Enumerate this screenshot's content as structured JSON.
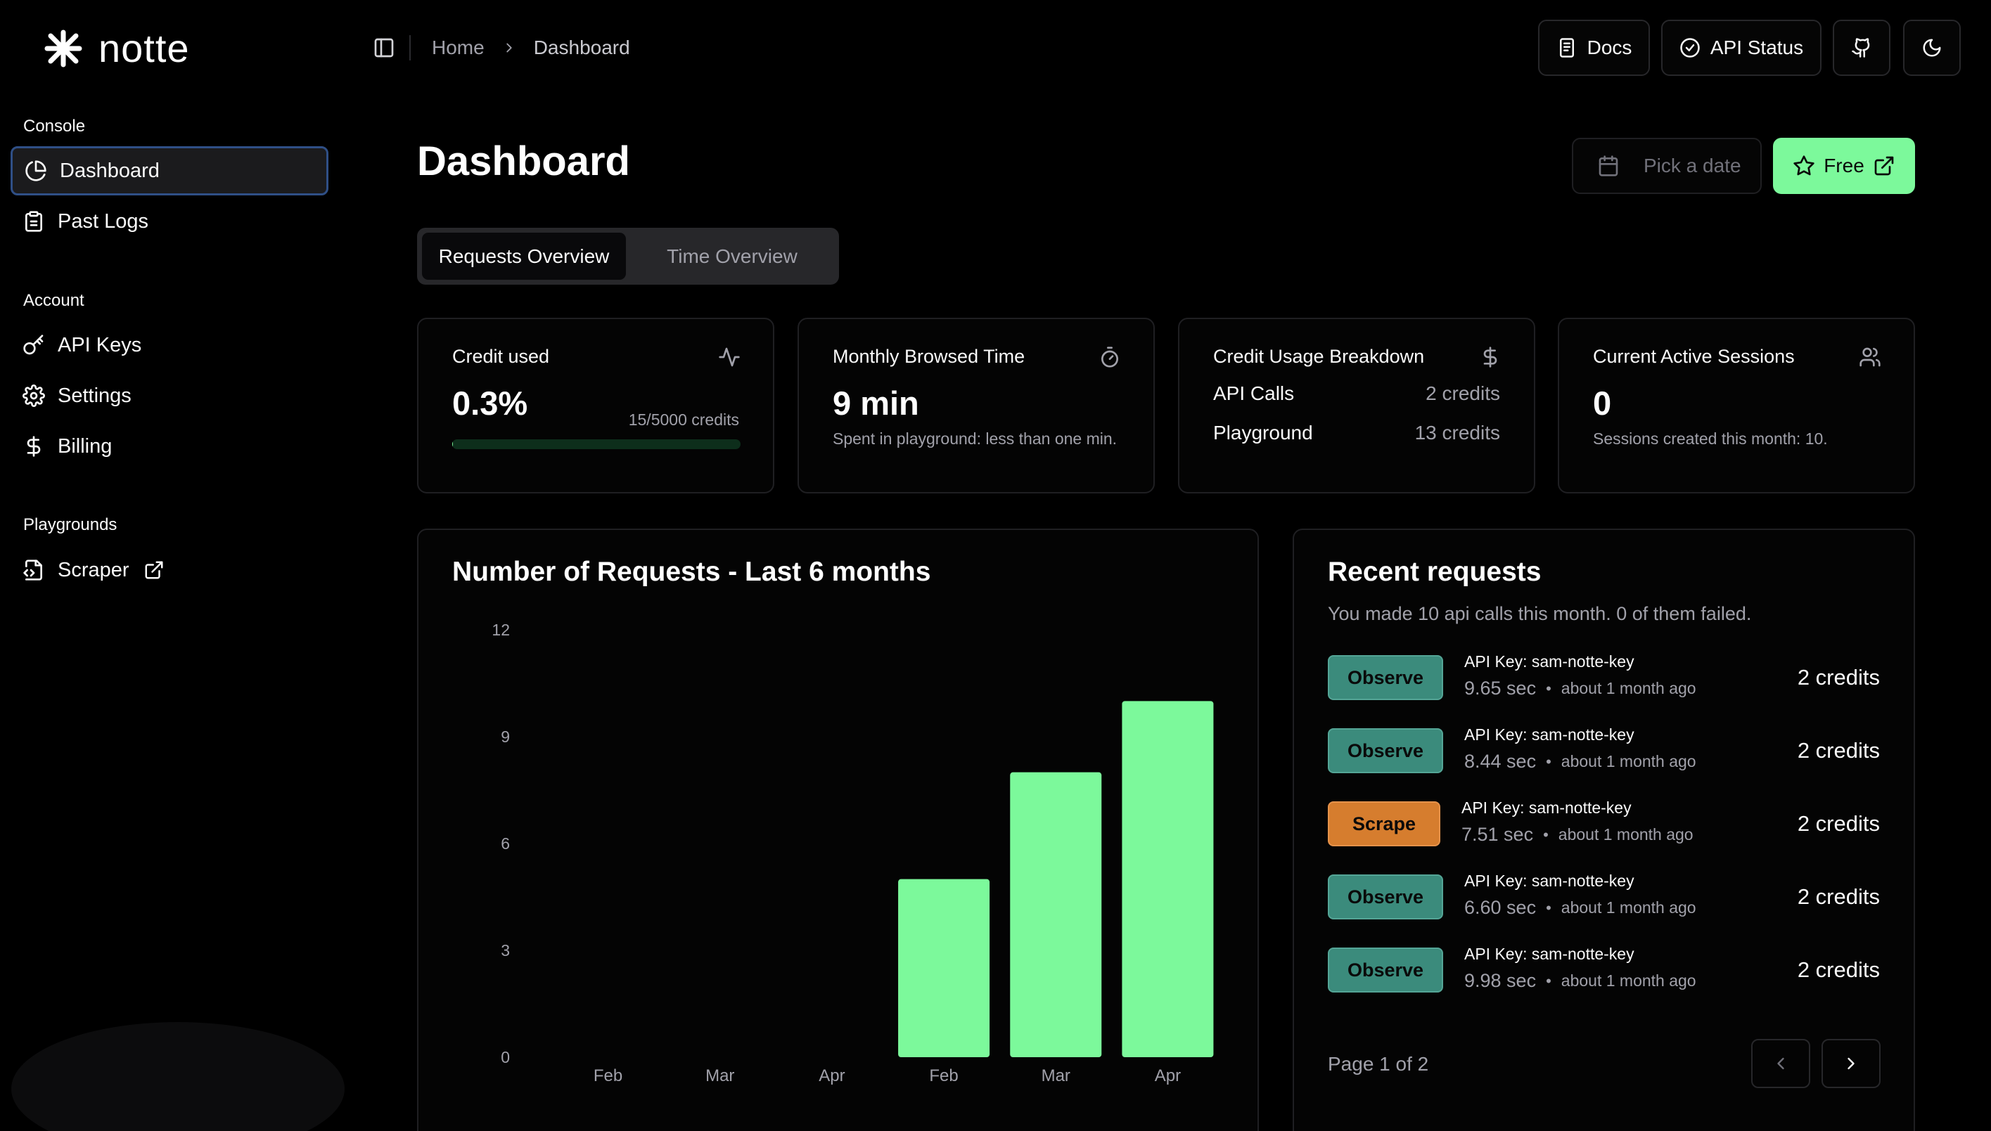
{
  "brand": {
    "name": "notte"
  },
  "sidebar": {
    "sections": [
      {
        "label": "Console",
        "items": [
          {
            "label": "Dashboard",
            "icon": "pie-chart-icon",
            "active": true
          },
          {
            "label": "Past Logs",
            "icon": "clipboard-icon"
          }
        ]
      },
      {
        "label": "Account",
        "items": [
          {
            "label": "API Keys",
            "icon": "key-icon"
          },
          {
            "label": "Settings",
            "icon": "gear-icon"
          },
          {
            "label": "Billing",
            "icon": "dollar-icon"
          }
        ]
      },
      {
        "label": "Playgrounds",
        "items": [
          {
            "label": "Scraper",
            "icon": "file-code-icon",
            "external": true
          }
        ]
      }
    ]
  },
  "topbar": {
    "breadcrumb": [
      "Home",
      "Dashboard"
    ],
    "docs_label": "Docs",
    "api_status_label": "API Status"
  },
  "header": {
    "title": "Dashboard",
    "date_placeholder": "Pick a date",
    "plan_label": "Free"
  },
  "tabs": [
    {
      "label": "Requests Overview",
      "active": true
    },
    {
      "label": "Time Overview",
      "active": false
    }
  ],
  "cards": {
    "credit_used": {
      "title": "Credit used",
      "value": "0.3%",
      "note": "15/5000 credits",
      "progress_fraction": 0.003
    },
    "browsed_time": {
      "title": "Monthly Browsed Time",
      "value": "9 min",
      "sub": "Spent in playground: less than one min."
    },
    "breakdown": {
      "title": "Credit Usage Breakdown",
      "rows": [
        {
          "label": "API Calls",
          "value": "2 credits"
        },
        {
          "label": "Playground",
          "value": "13 credits"
        }
      ]
    },
    "sessions": {
      "title": "Current Active Sessions",
      "value": "0",
      "sub": "Sessions created this month: 10."
    }
  },
  "chart_data": {
    "type": "bar",
    "title": "Number of Requests - Last 6 months",
    "categories": [
      "Feb",
      "Mar",
      "Apr",
      "Feb",
      "Mar",
      "Apr"
    ],
    "values": [
      0,
      0,
      0,
      5,
      8,
      10
    ],
    "ylim": [
      0,
      12
    ],
    "yticks": [
      0,
      3,
      6,
      9,
      12
    ],
    "grid": false,
    "color": "#7cf99b"
  },
  "recent": {
    "title": "Recent requests",
    "subtitle": "You made 10 api calls this month. 0 of them failed.",
    "rows": [
      {
        "type": "Observe",
        "key": "API Key: sam-notte-key",
        "time": "9.65 sec",
        "ago": "about 1 month ago",
        "credits": "2 credits"
      },
      {
        "type": "Observe",
        "key": "API Key: sam-notte-key",
        "time": "8.44 sec",
        "ago": "about 1 month ago",
        "credits": "2 credits"
      },
      {
        "type": "Scrape",
        "key": "API Key: sam-notte-key",
        "time": "7.51 sec",
        "ago": "about 1 month ago",
        "credits": "2 credits"
      },
      {
        "type": "Observe",
        "key": "API Key: sam-notte-key",
        "time": "6.60 sec",
        "ago": "about 1 month ago",
        "credits": "2 credits"
      },
      {
        "type": "Observe",
        "key": "API Key: sam-notte-key",
        "time": "9.98 sec",
        "ago": "about 1 month ago",
        "credits": "2 credits"
      }
    ],
    "page_info": "Page 1 of 2"
  }
}
